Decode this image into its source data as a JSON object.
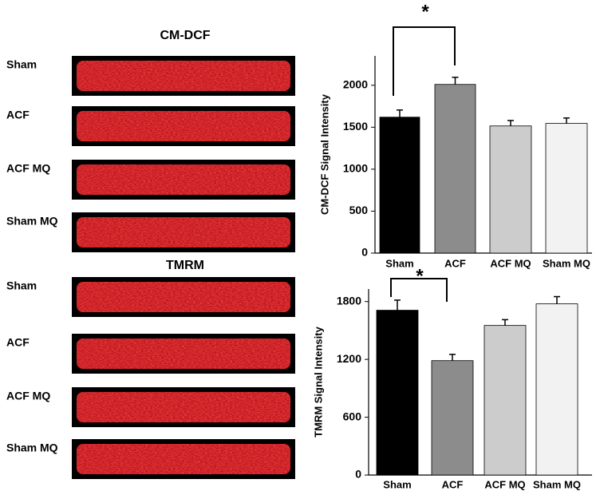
{
  "image_panels": [
    {
      "title": "CM-DCF",
      "labels": [
        "Sham",
        "ACF",
        "ACF MQ",
        "Sham MQ"
      ]
    },
    {
      "title": "TMRM",
      "labels": [
        "Sham",
        "ACF",
        "ACF MQ",
        "Sham MQ"
      ]
    }
  ],
  "chart_data": [
    {
      "type": "bar",
      "y_label": "CM-DCF Signal Intensity",
      "categories": [
        "Sham",
        "ACF",
        "ACF MQ",
        "Sham MQ"
      ],
      "values": [
        1620,
        2010,
        1515,
        1545
      ],
      "errors": [
        85,
        85,
        65,
        65
      ],
      "colors": [
        "#000000",
        "#8c8c8c",
        "#cccccc",
        "#f2f2f2"
      ],
      "ylim": [
        0,
        2350
      ],
      "yticks": [
        0,
        500,
        1000,
        1500,
        2000
      ],
      "annotation": "*"
    },
    {
      "type": "bar",
      "y_label": "TMRM Signal Intensity",
      "categories": [
        "Sham",
        "ACF",
        "ACF MQ",
        "Sham MQ"
      ],
      "values": [
        1710,
        1187,
        1552,
        1776
      ],
      "errors": [
        105,
        65,
        60,
        75
      ],
      "colors": [
        "#000000",
        "#8c8c8c",
        "#cccccc",
        "#f2f2f2"
      ],
      "ylim": [
        0,
        1930
      ],
      "yticks": [
        0,
        600,
        1200,
        1800
      ],
      "annotation": "*"
    }
  ]
}
